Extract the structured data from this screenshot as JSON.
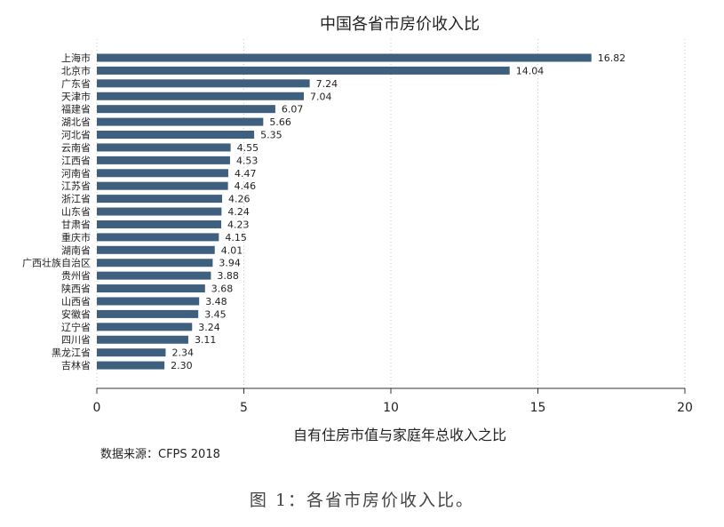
{
  "chart_data": {
    "type": "bar",
    "orientation": "horizontal",
    "title": "中国各省市房价收入比",
    "xlabel": "自有住房市值与家庭年总收入之比",
    "ylabel": "",
    "xlim": [
      0,
      20
    ],
    "x_ticks": [
      "0",
      "5",
      "10",
      "15",
      "20"
    ],
    "grid": "vertical-dotted",
    "bar_color": "#3e5f7e",
    "categories": [
      "上海市",
      "北京市",
      "广东省",
      "天津市",
      "福建省",
      "湖北省",
      "河北省",
      "云南省",
      "江西省",
      "河南省",
      "江苏省",
      "浙江省",
      "山东省",
      "甘肃省",
      "重庆市",
      "湖南省",
      "广西壮族自治区",
      "贵州省",
      "陕西省",
      "山西省",
      "安徽省",
      "辽宁省",
      "四川省",
      "黑龙江省",
      "吉林省"
    ],
    "values": [
      16.82,
      14.04,
      7.24,
      7.04,
      6.07,
      5.66,
      5.35,
      4.55,
      4.53,
      4.47,
      4.46,
      4.26,
      4.24,
      4.23,
      4.15,
      4.01,
      3.94,
      3.88,
      3.68,
      3.48,
      3.45,
      3.24,
      3.11,
      2.34,
      2.3
    ],
    "value_labels": [
      "16.82",
      "14.04",
      "7.24",
      "7.04",
      "6.07",
      "5.66",
      "5.35",
      "4.55",
      "4.53",
      "4.47",
      "4.46",
      "4.26",
      "4.24",
      "4.23",
      "4.15",
      "4.01",
      "3.94",
      "3.88",
      "3.68",
      "3.48",
      "3.45",
      "3.24",
      "3.11",
      "2.34",
      "2.30"
    ],
    "note": "数据来源：CFPS 2018"
  },
  "caption": "图 1：各省市房价收入比。"
}
